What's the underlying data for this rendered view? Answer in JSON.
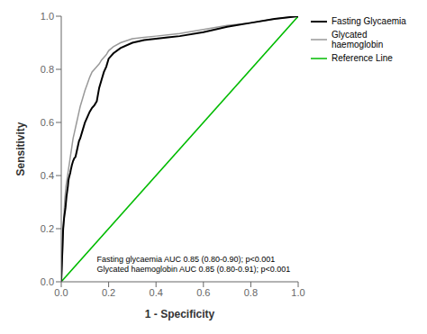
{
  "chart_data": {
    "type": "line",
    "xlabel": "1 - Specificity",
    "ylabel": "Sensitivity",
    "xlim": [
      0.0,
      1.0
    ],
    "ylim": [
      0.0,
      1.0
    ],
    "xticks": [
      {
        "value": 0.0,
        "label": "0.0"
      },
      0.2,
      0.4,
      0.6,
      0.8,
      {
        "value": 1.0,
        "label": "1.0"
      }
    ],
    "yticks": [
      {
        "value": 0.0,
        "label": "0.0"
      },
      0.2,
      0.4,
      0.6,
      0.8,
      {
        "value": 1.0,
        "label": "1.0"
      }
    ],
    "annotations": [
      "Fasting glycaemia AUC 0.85 (0.80-0.90); p<0.001",
      "Glycated haemoglobin AUC 0.85 (0.80-0.91); p<0.001"
    ],
    "grid": false,
    "legend": "right",
    "series": [
      {
        "name": "Fasting Glycaemia",
        "color": "#000000",
        "x": [
          0.0,
          0.002,
          0.004,
          0.006,
          0.008,
          0.01,
          0.012,
          0.015,
          0.018,
          0.02,
          0.022,
          0.025,
          0.028,
          0.03,
          0.032,
          0.035,
          0.038,
          0.04,
          0.045,
          0.05,
          0.055,
          0.06,
          0.065,
          0.07,
          0.075,
          0.08,
          0.09,
          0.1,
          0.11,
          0.12,
          0.13,
          0.14,
          0.15,
          0.16,
          0.17,
          0.18,
          0.19,
          0.2,
          0.22,
          0.25,
          0.3,
          0.35,
          0.4,
          0.45,
          0.5,
          0.6,
          0.7,
          0.8,
          0.9,
          1.0
        ],
        "values": [
          0.0,
          0.05,
          0.1,
          0.15,
          0.2,
          0.22,
          0.24,
          0.26,
          0.28,
          0.3,
          0.32,
          0.34,
          0.36,
          0.38,
          0.39,
          0.4,
          0.41,
          0.42,
          0.44,
          0.455,
          0.465,
          0.47,
          0.49,
          0.51,
          0.53,
          0.54,
          0.57,
          0.6,
          0.62,
          0.64,
          0.655,
          0.665,
          0.68,
          0.73,
          0.76,
          0.79,
          0.81,
          0.84,
          0.86,
          0.88,
          0.9,
          0.91,
          0.915,
          0.92,
          0.925,
          0.94,
          0.96,
          0.975,
          0.99,
          1.0
        ]
      },
      {
        "name": "Glycated haemoglobin",
        "color": "#999999",
        "x": [
          0.0,
          0.002,
          0.004,
          0.006,
          0.008,
          0.01,
          0.012,
          0.015,
          0.018,
          0.02,
          0.025,
          0.03,
          0.035,
          0.04,
          0.045,
          0.05,
          0.055,
          0.06,
          0.065,
          0.07,
          0.075,
          0.08,
          0.09,
          0.1,
          0.11,
          0.12,
          0.13,
          0.14,
          0.15,
          0.16,
          0.17,
          0.18,
          0.19,
          0.2,
          0.22,
          0.25,
          0.3,
          0.35,
          0.4,
          0.5,
          0.6,
          0.7,
          0.8,
          0.9,
          1.0
        ],
        "values": [
          0.0,
          0.04,
          0.08,
          0.13,
          0.18,
          0.22,
          0.26,
          0.31,
          0.34,
          0.36,
          0.39,
          0.42,
          0.45,
          0.48,
          0.51,
          0.54,
          0.56,
          0.58,
          0.6,
          0.62,
          0.64,
          0.66,
          0.69,
          0.72,
          0.745,
          0.77,
          0.79,
          0.8,
          0.81,
          0.82,
          0.835,
          0.845,
          0.855,
          0.87,
          0.885,
          0.9,
          0.915,
          0.92,
          0.925,
          0.935,
          0.95,
          0.965,
          0.975,
          0.99,
          1.0
        ]
      },
      {
        "name": "Reference Line",
        "color": "#00bb00",
        "x": [
          0,
          1
        ],
        "values": [
          0,
          1
        ]
      }
    ]
  }
}
